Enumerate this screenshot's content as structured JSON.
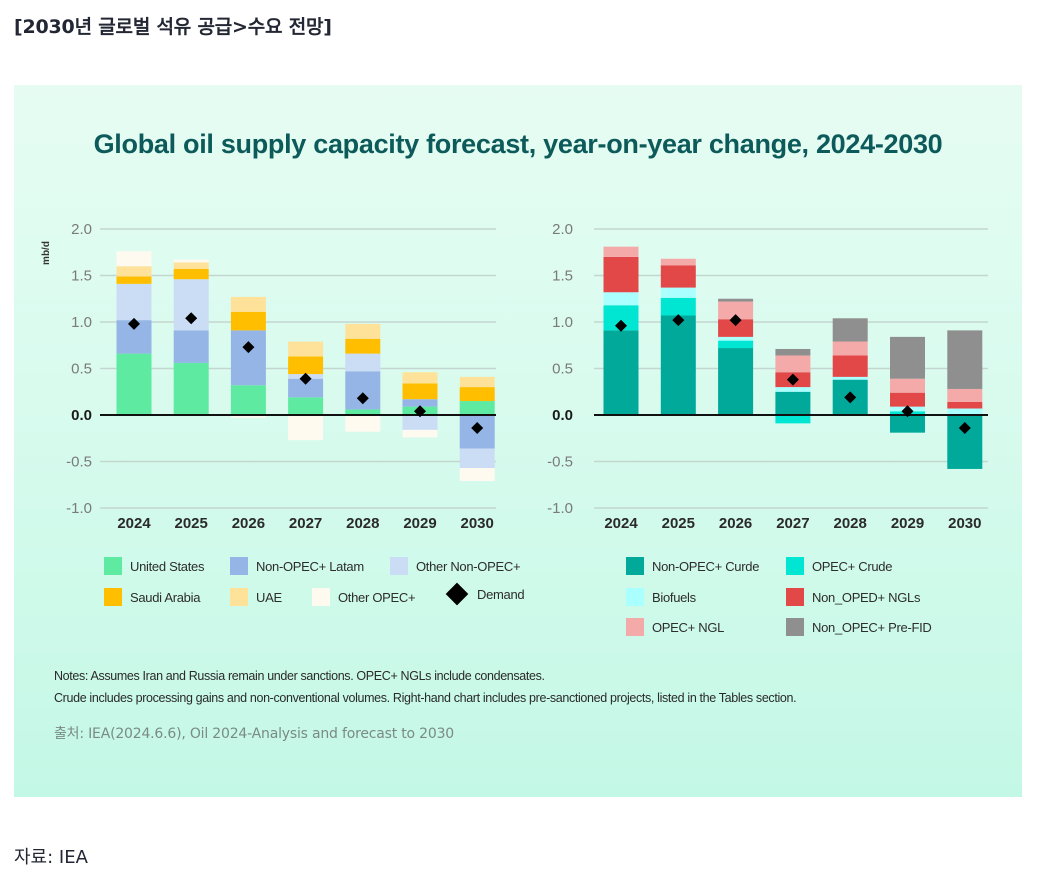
{
  "page": {
    "heading": "[2030년 글로벌 석유 공급>수요 전망]",
    "footer_source": "자료: IEA"
  },
  "figure": {
    "title": "Global oil supply capacity forecast, year-on-year change, 2024-2030",
    "notes": [
      "Notes: Assumes Iran and Russia remain under sanctions. OPEC+ NGLs include condensates.",
      "Crude includes processing gains and non-conventional volumes. Right-hand chart includes pre-sanctioned projects, listed in the Tables section."
    ],
    "source": "출처: IEA(2024.6.6), Oil 2024-Analysis and forecast to 2030"
  },
  "chart_data": [
    {
      "type": "bar",
      "stacked": true,
      "title": "",
      "ylabel": "mb/d",
      "xlabel": "",
      "ylim": [
        -1.0,
        2.0
      ],
      "yticks": [
        2.0,
        1.5,
        1.0,
        0.5,
        0.0,
        -0.5,
        -1.0
      ],
      "ytick_labels": [
        "2.0",
        "1.5",
        "1.0",
        "0.5",
        "0.0",
        "-0.5",
        "-1.0"
      ],
      "grid": true,
      "legend_position": "bottom",
      "categories": [
        "2024",
        "2025",
        "2026",
        "2027",
        "2028",
        "2029",
        "2030"
      ],
      "series": [
        {
          "name": "United States",
          "color": "#5eeaa0",
          "values": [
            0.66,
            0.56,
            0.32,
            0.19,
            0.06,
            0.09,
            0.15
          ]
        },
        {
          "name": "Non-OPEC+ Latam",
          "color": "#94b5e6",
          "values": [
            0.36,
            0.35,
            0.59,
            0.2,
            0.41,
            0.08,
            -0.36
          ]
        },
        {
          "name": "Other Non-OPEC+",
          "color": "#cbdcf5",
          "values": [
            0.39,
            0.55,
            0.0,
            0.05,
            0.19,
            -0.16,
            -0.21
          ]
        },
        {
          "name": "Saudi Arabia",
          "color": "#ffbf00",
          "values": [
            0.08,
            0.11,
            0.2,
            0.19,
            0.16,
            0.17,
            0.15
          ]
        },
        {
          "name": "UAE",
          "color": "#ffe29a",
          "values": [
            0.11,
            0.07,
            0.16,
            0.16,
            0.16,
            0.12,
            0.11
          ]
        },
        {
          "name": "Other OPEC+",
          "color": "#fffaf0",
          "values": [
            0.16,
            0.03,
            -0.03,
            -0.27,
            -0.18,
            -0.08,
            -0.14
          ]
        }
      ],
      "markers": {
        "name": "Demand",
        "color": "#000000",
        "values": [
          0.98,
          1.04,
          0.73,
          0.39,
          0.18,
          0.04,
          -0.14
        ]
      }
    },
    {
      "type": "bar",
      "stacked": true,
      "title": "",
      "ylabel": "",
      "xlabel": "",
      "ylim": [
        -1.0,
        2.0
      ],
      "yticks": [
        2.0,
        1.5,
        1.0,
        0.5,
        0.0,
        -0.5,
        -1.0
      ],
      "ytick_labels": [
        "2.0",
        "1.5",
        "1.0",
        "0.5",
        "0.0",
        "-0.5",
        "-1.0"
      ],
      "grid": true,
      "legend_position": "bottom",
      "categories": [
        "2024",
        "2025",
        "2026",
        "2027",
        "2028",
        "2029",
        "2030"
      ],
      "series": [
        {
          "name": "Non-OPEC+ Curde",
          "color": "#00a99a",
          "values": [
            0.91,
            1.07,
            0.72,
            0.25,
            0.38,
            -0.19,
            -0.58
          ]
        },
        {
          "name": "OPEC+ Crude",
          "color": "#00e6d2",
          "values": [
            0.27,
            0.19,
            0.08,
            -0.09,
            0.0,
            0.04,
            0.0
          ]
        },
        {
          "name": "Biofuels",
          "color": "#aaffff",
          "values": [
            0.14,
            0.11,
            0.04,
            0.05,
            0.03,
            0.05,
            0.07
          ]
        },
        {
          "name": "Non_OPED+ NGLs",
          "color": "#e34848",
          "values": [
            0.38,
            0.24,
            0.19,
            0.16,
            0.23,
            0.15,
            0.07
          ]
        },
        {
          "name": "OPEC+ NGL",
          "color": "#f5aaaa",
          "values": [
            0.11,
            0.07,
            0.19,
            0.18,
            0.15,
            0.15,
            0.14
          ]
        },
        {
          "name": "Non_OPEC+ Pre-FID",
          "color": "#8f8f8f",
          "values": [
            0.0,
            0.0,
            0.03,
            0.07,
            0.25,
            0.45,
            0.63
          ]
        }
      ],
      "markers": {
        "name": "Demand",
        "color": "#000000",
        "values": [
          0.96,
          1.02,
          1.02,
          0.38,
          0.19,
          0.04,
          -0.14
        ]
      }
    }
  ],
  "legends": [
    {
      "items": [
        {
          "label": "United States",
          "color": "#5eeaa0",
          "kind": "swatch"
        },
        {
          "label": "Non-OPEC+ Latam",
          "color": "#94b5e6",
          "kind": "swatch"
        },
        {
          "label": "Other Non-OPEC+",
          "color": "#cbdcf5",
          "kind": "swatch"
        },
        {
          "label": "Saudi Arabia",
          "color": "#ffbf00",
          "kind": "swatch"
        },
        {
          "label": "UAE",
          "color": "#ffe29a",
          "kind": "swatch"
        },
        {
          "label": "Other OPEC+",
          "color": "#fffaf0",
          "kind": "swatch"
        },
        {
          "label": "Demand",
          "color": "#000000",
          "kind": "diamond"
        }
      ]
    },
    {
      "items": [
        {
          "label": "Non-OPEC+ Curde",
          "color": "#00a99a",
          "kind": "swatch"
        },
        {
          "label": "OPEC+ Crude",
          "color": "#00e6d2",
          "kind": "swatch"
        },
        {
          "label": "Biofuels",
          "color": "#aaffff",
          "kind": "swatch"
        },
        {
          "label": "Non_OPED+ NGLs",
          "color": "#e34848",
          "kind": "swatch"
        },
        {
          "label": "OPEC+ NGL",
          "color": "#f5aaaa",
          "kind": "swatch"
        },
        {
          "label": "Non_OPEC+ Pre-FID",
          "color": "#8f8f8f",
          "kind": "swatch"
        }
      ]
    }
  ]
}
